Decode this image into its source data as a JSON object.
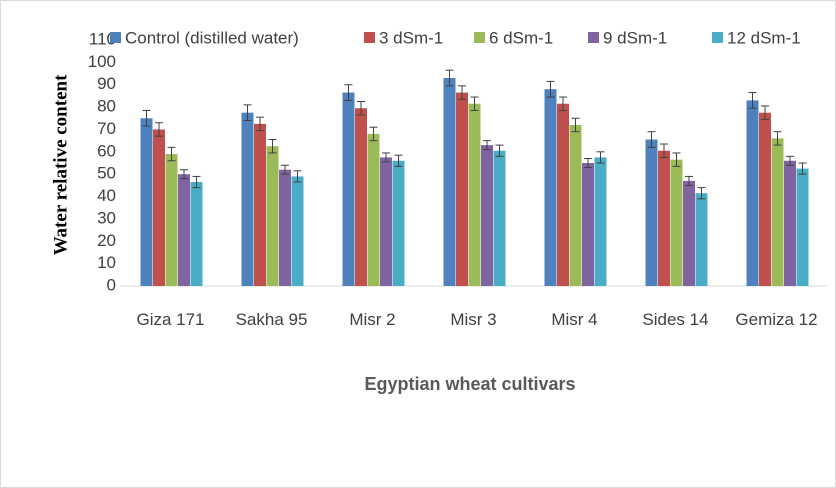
{
  "chart_data": {
    "type": "bar",
    "y_label": "Water relative content",
    "x_label": "Egyptian wheat cultivars",
    "categories": [
      "Giza 171",
      "Sakha 95",
      "Misr 2",
      "Misr 3",
      "Misr 4",
      "Sides 14",
      "Gemiza 12"
    ],
    "series": [
      {
        "name": "Control (distilled water)",
        "color": "#4f81bd",
        "values": [
          75,
          77.5,
          86.5,
          93,
          88,
          65.5,
          83
        ],
        "errors": [
          3.5,
          3.5,
          3.5,
          3.5,
          3.5,
          3.5,
          3.5
        ]
      },
      {
        "name": "3 dSm-1",
        "color": "#c0504d",
        "values": [
          70,
          72.5,
          79.5,
          86.5,
          81.5,
          60.5,
          77.5
        ],
        "errors": [
          3,
          3,
          3,
          3,
          3,
          3,
          3
        ]
      },
      {
        "name": "6 dSm-1",
        "color": "#9bbb59",
        "values": [
          59,
          62.5,
          68,
          81.5,
          72,
          56.5,
          66
        ],
        "errors": [
          3,
          3,
          3,
          3,
          3,
          3,
          3
        ]
      },
      {
        "name": "9 dSm-1",
        "color": "#8064a2",
        "values": [
          50,
          52,
          57.5,
          63,
          55,
          47,
          56
        ],
        "errors": [
          2,
          2,
          2,
          2,
          2,
          2,
          2
        ]
      },
      {
        "name": "12 dSm-1",
        "color": "#4bacc6",
        "values": [
          46.5,
          49,
          56,
          60.5,
          57.5,
          41.5,
          52.5
        ],
        "errors": [
          2.5,
          2.5,
          2.5,
          2.5,
          2.5,
          2.5,
          2.5
        ]
      }
    ],
    "ylim": [
      0,
      110
    ],
    "yticks": [
      0,
      10,
      20,
      30,
      40,
      50,
      60,
      70,
      80,
      90,
      100,
      110
    ],
    "legend": "top"
  }
}
